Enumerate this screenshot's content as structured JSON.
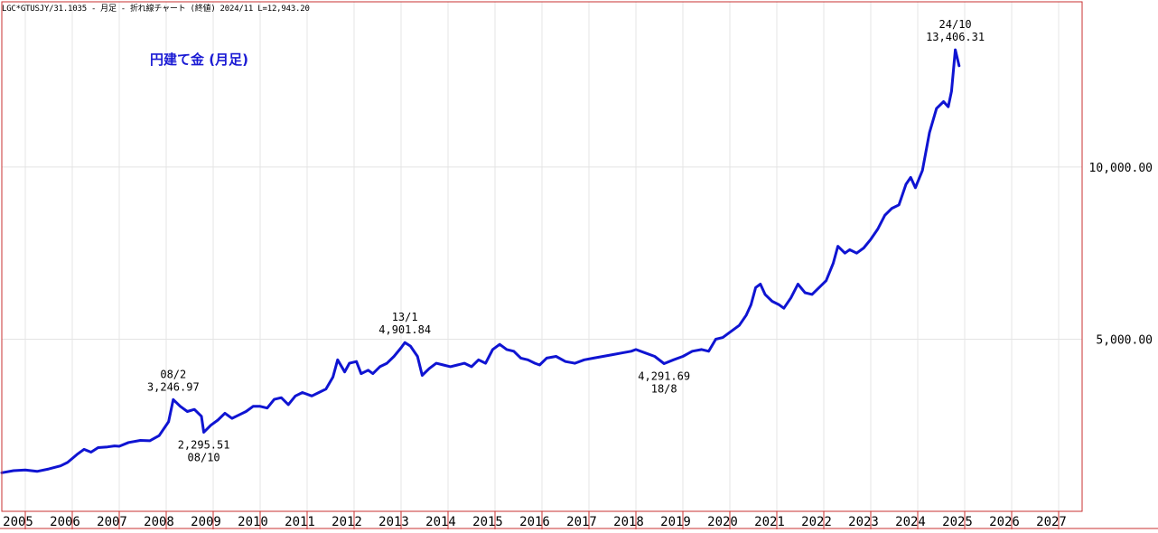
{
  "header": {
    "symbol": "LGC*GTUSJY/31.1035",
    "period": "月足",
    "chart_kind": "折れ線チャート",
    "price_basis": "(終値)",
    "latest": "2024/11 L=12,943.20"
  },
  "colors": {
    "line": "#0f14d2",
    "title": "#1a1ad4",
    "grid": "#e4e4e4",
    "year_divider": "#c83232",
    "frame": "#c83232"
  },
  "chart_data": {
    "type": "line",
    "title": "円建て金 (月足)",
    "xlabel": "",
    "ylabel": "",
    "y_ticks": [
      {
        "value": 10000,
        "label": "10,000.00"
      },
      {
        "value": 5000,
        "label": "5,000.00"
      }
    ],
    "ylim": [
      0,
      14800
    ],
    "xlim": [
      2004.5,
      2027.5
    ],
    "x_tick_labels": [
      "2005",
      "2006",
      "2007",
      "2008",
      "2009",
      "2010",
      "2011",
      "2012",
      "2013",
      "2014",
      "2015",
      "2016",
      "2017",
      "2018",
      "2019",
      "2020",
      "2021",
      "2022",
      "2023",
      "2024",
      "2025",
      "2026",
      "2027"
    ],
    "grid": "horizontal",
    "legend": "none",
    "series": [
      {
        "points": [
          [
            2004.5,
            1120
          ],
          [
            2004.75,
            1180
          ],
          [
            2005.0,
            1200
          ],
          [
            2005.25,
            1160
          ],
          [
            2005.5,
            1230
          ],
          [
            2005.75,
            1320
          ],
          [
            2005.9,
            1420
          ],
          [
            2006.1,
            1650
          ],
          [
            2006.25,
            1800
          ],
          [
            2006.4,
            1720
          ],
          [
            2006.55,
            1850
          ],
          [
            2006.75,
            1870
          ],
          [
            2006.9,
            1900
          ],
          [
            2007.0,
            1890
          ],
          [
            2007.2,
            2000
          ],
          [
            2007.45,
            2060
          ],
          [
            2007.65,
            2050
          ],
          [
            2007.85,
            2200
          ],
          [
            2008.05,
            2600
          ],
          [
            2008.15,
            3246.97
          ],
          [
            2008.3,
            3050
          ],
          [
            2008.45,
            2900
          ],
          [
            2008.6,
            2960
          ],
          [
            2008.75,
            2760
          ],
          [
            2008.8,
            2295.51
          ],
          [
            2008.95,
            2500
          ],
          [
            2009.1,
            2650
          ],
          [
            2009.25,
            2850
          ],
          [
            2009.4,
            2700
          ],
          [
            2009.55,
            2800
          ],
          [
            2009.7,
            2900
          ],
          [
            2009.85,
            3050
          ],
          [
            2010.0,
            3050
          ],
          [
            2010.15,
            3000
          ],
          [
            2010.3,
            3250
          ],
          [
            2010.45,
            3300
          ],
          [
            2010.6,
            3100
          ],
          [
            2010.75,
            3350
          ],
          [
            2010.9,
            3450
          ],
          [
            2011.1,
            3350
          ],
          [
            2011.25,
            3450
          ],
          [
            2011.4,
            3550
          ],
          [
            2011.55,
            3900
          ],
          [
            2011.65,
            4400
          ],
          [
            2011.8,
            4050
          ],
          [
            2011.9,
            4300
          ],
          [
            2012.05,
            4350
          ],
          [
            2012.15,
            4000
          ],
          [
            2012.3,
            4100
          ],
          [
            2012.4,
            4000
          ],
          [
            2012.55,
            4200
          ],
          [
            2012.7,
            4300
          ],
          [
            2012.85,
            4500
          ],
          [
            2013.0,
            4750
          ],
          [
            2013.08,
            4901.84
          ],
          [
            2013.2,
            4800
          ],
          [
            2013.35,
            4500
          ],
          [
            2013.45,
            3950
          ],
          [
            2013.6,
            4150
          ],
          [
            2013.75,
            4300
          ],
          [
            2013.9,
            4250
          ],
          [
            2014.05,
            4200
          ],
          [
            2014.2,
            4250
          ],
          [
            2014.35,
            4300
          ],
          [
            2014.5,
            4200
          ],
          [
            2014.65,
            4400
          ],
          [
            2014.8,
            4300
          ],
          [
            2014.95,
            4700
          ],
          [
            2015.1,
            4850
          ],
          [
            2015.25,
            4700
          ],
          [
            2015.4,
            4650
          ],
          [
            2015.55,
            4450
          ],
          [
            2015.7,
            4400
          ],
          [
            2015.85,
            4300
          ],
          [
            2015.95,
            4250
          ],
          [
            2016.1,
            4450
          ],
          [
            2016.3,
            4500
          ],
          [
            2016.5,
            4350
          ],
          [
            2016.7,
            4300
          ],
          [
            2016.9,
            4400
          ],
          [
            2017.1,
            4450
          ],
          [
            2017.3,
            4500
          ],
          [
            2017.5,
            4550
          ],
          [
            2017.7,
            4600
          ],
          [
            2017.9,
            4650
          ],
          [
            2018.0,
            4700
          ],
          [
            2018.2,
            4600
          ],
          [
            2018.4,
            4500
          ],
          [
            2018.6,
            4291.69
          ],
          [
            2018.8,
            4400
          ],
          [
            2019.0,
            4500
          ],
          [
            2019.2,
            4650
          ],
          [
            2019.4,
            4700
          ],
          [
            2019.55,
            4650
          ],
          [
            2019.7,
            5000
          ],
          [
            2019.85,
            5050
          ],
          [
            2020.0,
            5200
          ],
          [
            2020.2,
            5400
          ],
          [
            2020.35,
            5700
          ],
          [
            2020.45,
            6000
          ],
          [
            2020.55,
            6500
          ],
          [
            2020.65,
            6600
          ],
          [
            2020.75,
            6300
          ],
          [
            2020.9,
            6100
          ],
          [
            2021.05,
            6000
          ],
          [
            2021.15,
            5900
          ],
          [
            2021.3,
            6200
          ],
          [
            2021.45,
            6600
          ],
          [
            2021.6,
            6350
          ],
          [
            2021.75,
            6300
          ],
          [
            2021.9,
            6500
          ],
          [
            2022.05,
            6700
          ],
          [
            2022.2,
            7200
          ],
          [
            2022.3,
            7700
          ],
          [
            2022.45,
            7500
          ],
          [
            2022.55,
            7600
          ],
          [
            2022.7,
            7500
          ],
          [
            2022.85,
            7650
          ],
          [
            2023.0,
            7900
          ],
          [
            2023.15,
            8200
          ],
          [
            2023.3,
            8600
          ],
          [
            2023.45,
            8800
          ],
          [
            2023.6,
            8900
          ],
          [
            2023.75,
            9500
          ],
          [
            2023.85,
            9700
          ],
          [
            2023.95,
            9400
          ],
          [
            2024.1,
            9900
          ],
          [
            2024.25,
            11000
          ],
          [
            2024.4,
            11700
          ],
          [
            2024.55,
            11900
          ],
          [
            2024.65,
            11750
          ],
          [
            2024.72,
            12200
          ],
          [
            2024.8,
            13406.31
          ],
          [
            2024.88,
            12943.2
          ]
        ]
      }
    ],
    "annotations": [
      {
        "label": "08/2",
        "value": "3,246.97",
        "x": 2008.15,
        "y": 3246.97,
        "position": "above"
      },
      {
        "label": "08/10",
        "value": "2,295.51",
        "x": 2008.8,
        "y": 2295.51,
        "position": "below"
      },
      {
        "label": "13/1",
        "value": "4,901.84",
        "x": 2013.08,
        "y": 4901.84,
        "position": "above"
      },
      {
        "label": "18/8",
        "value": "4,291.69",
        "x": 2018.6,
        "y": 4291.69,
        "position": "below"
      },
      {
        "label": "24/10",
        "value": "13,406.31",
        "x": 2024.8,
        "y": 13406.31,
        "position": "above"
      }
    ]
  }
}
